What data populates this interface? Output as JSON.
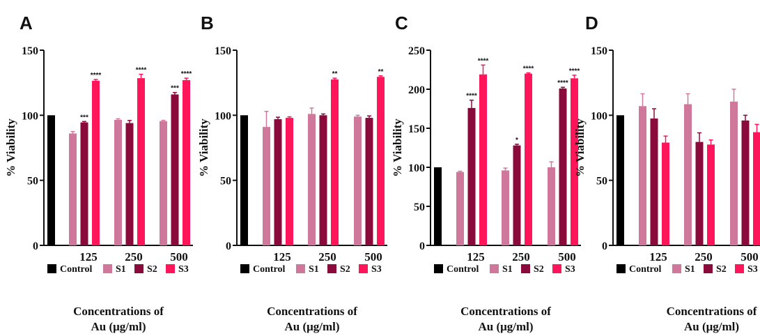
{
  "chart_data": [
    {
      "type": "bar",
      "panel": "A",
      "ylabel": "% Viability",
      "ylim": [
        0,
        150
      ],
      "yticks": [
        0,
        50,
        100,
        150
      ],
      "categories": [
        "125",
        "250",
        "500"
      ],
      "xlabel": [
        "Concentrations of",
        "Au (μg/ml)"
      ],
      "control": {
        "name": "Control",
        "value": 100,
        "err": 0
      },
      "series": [
        {
          "name": "S1",
          "values": [
            86,
            96.5,
            95.5
          ],
          "errors": [
            1.5,
            0.8,
            0.6
          ],
          "sig": [
            "",
            "",
            ""
          ]
        },
        {
          "name": "S2",
          "values": [
            94.5,
            94,
            116
          ],
          "errors": [
            0.7,
            2,
            1.5
          ],
          "sig": [
            "***",
            "",
            "***"
          ]
        },
        {
          "name": "S3",
          "values": [
            126.5,
            128.5,
            127
          ],
          "errors": [
            1,
            3,
            1.5
          ],
          "sig": [
            "****",
            "****",
            "****"
          ]
        }
      ]
    },
    {
      "type": "bar",
      "panel": "B",
      "ylabel": "% Viability",
      "ylim": [
        0,
        150
      ],
      "yticks": [
        0,
        50,
        100,
        150
      ],
      "categories": [
        "125",
        "250",
        "500"
      ],
      "xlabel": [
        "Concentrations of",
        "Au (μg/ml)"
      ],
      "control": {
        "name": "Control",
        "value": 100,
        "err": 0
      },
      "series": [
        {
          "name": "S1",
          "values": [
            91,
            101,
            99
          ],
          "errors": [
            12,
            4.5,
            1
          ],
          "sig": [
            "",
            "",
            ""
          ]
        },
        {
          "name": "S2",
          "values": [
            97,
            100,
            98
          ],
          "errors": [
            1.5,
            1,
            1.5
          ],
          "sig": [
            "",
            "",
            ""
          ]
        },
        {
          "name": "S3",
          "values": [
            98,
            127.5,
            129.5
          ],
          "errors": [
            0.8,
            1,
            0.8
          ],
          "sig": [
            "",
            "**",
            "**"
          ]
        }
      ]
    },
    {
      "type": "bar",
      "panel": "C",
      "ylabel": "% Viability",
      "ylim": [
        0,
        250
      ],
      "yticks": [
        0,
        50,
        100,
        150,
        200,
        250
      ],
      "categories": [
        "125",
        "250",
        "500"
      ],
      "xlabel": [
        "Concentrations of",
        "Au (μg/ml)"
      ],
      "control": {
        "name": "Control",
        "value": 100,
        "err": 0
      },
      "series": [
        {
          "name": "S1",
          "values": [
            94,
            96,
            100
          ],
          "errors": [
            1,
            3,
            7
          ],
          "sig": [
            "",
            "",
            ""
          ]
        },
        {
          "name": "S2",
          "values": [
            176,
            128,
            201
          ],
          "errors": [
            10,
            1.5,
            1.5
          ],
          "sig": [
            "****",
            "*",
            "****"
          ]
        },
        {
          "name": "S3",
          "values": [
            219,
            220,
            214
          ],
          "errors": [
            12,
            1,
            4
          ],
          "sig": [
            "****",
            "****",
            "****"
          ]
        }
      ]
    },
    {
      "type": "bar",
      "panel": "D",
      "ylabel": "% Viability",
      "ylim": [
        0,
        150
      ],
      "yticks": [
        0,
        50,
        100,
        150
      ],
      "categories": [
        "125",
        "250",
        "500"
      ],
      "xlabel": [
        "Concentrations of",
        "Au (μg/ml)"
      ],
      "control": {
        "name": "Control",
        "value": 100,
        "err": 0
      },
      "series": [
        {
          "name": "S1",
          "values": [
            107,
            108.5,
            110.5
          ],
          "errors": [
            9.5,
            8,
            9.5
          ],
          "sig": [
            "",
            "",
            ""
          ]
        },
        {
          "name": "S2",
          "values": [
            97.5,
            79.5,
            96
          ],
          "errors": [
            7.5,
            7,
            4
          ],
          "sig": [
            "",
            "",
            ""
          ]
        },
        {
          "name": "S3",
          "values": [
            79,
            77.5,
            87
          ],
          "errors": [
            5,
            3.5,
            6
          ],
          "sig": [
            "",
            "",
            ""
          ]
        }
      ]
    }
  ],
  "colors": {
    "Control": "#000000",
    "S1": "#d0789b",
    "S2": "#8b0a3c",
    "S3": "#ff1559"
  }
}
